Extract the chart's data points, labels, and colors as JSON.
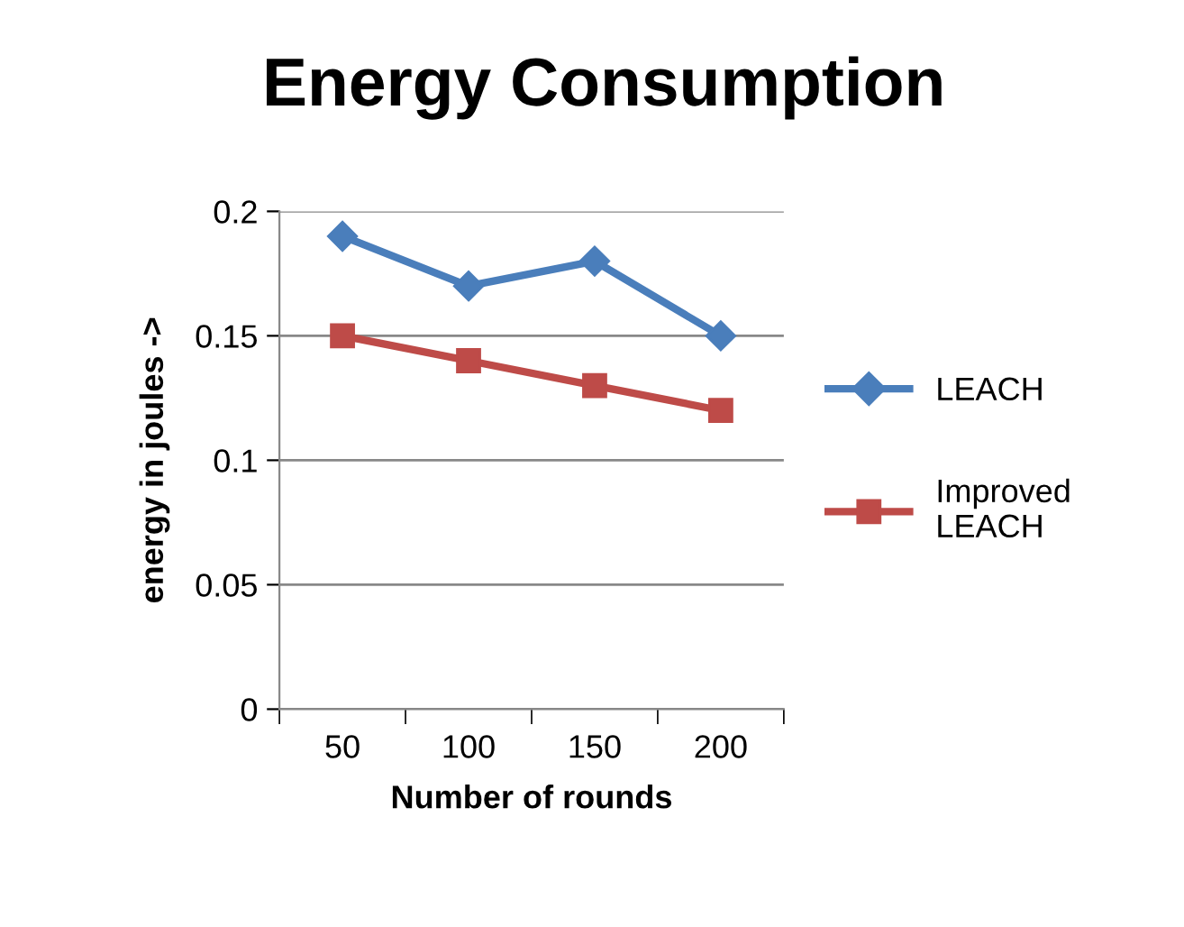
{
  "chart_data": {
    "type": "line",
    "title": "Energy Consumption",
    "xlabel": "Number of rounds",
    "ylabel": "energy in joules ->",
    "categories": [
      "50",
      "100",
      "150",
      "200"
    ],
    "series": [
      {
        "name": "LEACH",
        "color": "#4a7ebb",
        "marker": "diamond",
        "values": [
          0.19,
          0.17,
          0.18,
          0.15
        ]
      },
      {
        "name": "Improved LEACH",
        "color": "#be4b48",
        "marker": "square",
        "values": [
          0.15,
          0.14,
          0.13,
          0.12
        ]
      }
    ],
    "ylim": [
      0,
      0.2
    ],
    "yticks": [
      0,
      0.05,
      0.1,
      0.15,
      0.2
    ],
    "grid": "y",
    "legend": "right"
  }
}
